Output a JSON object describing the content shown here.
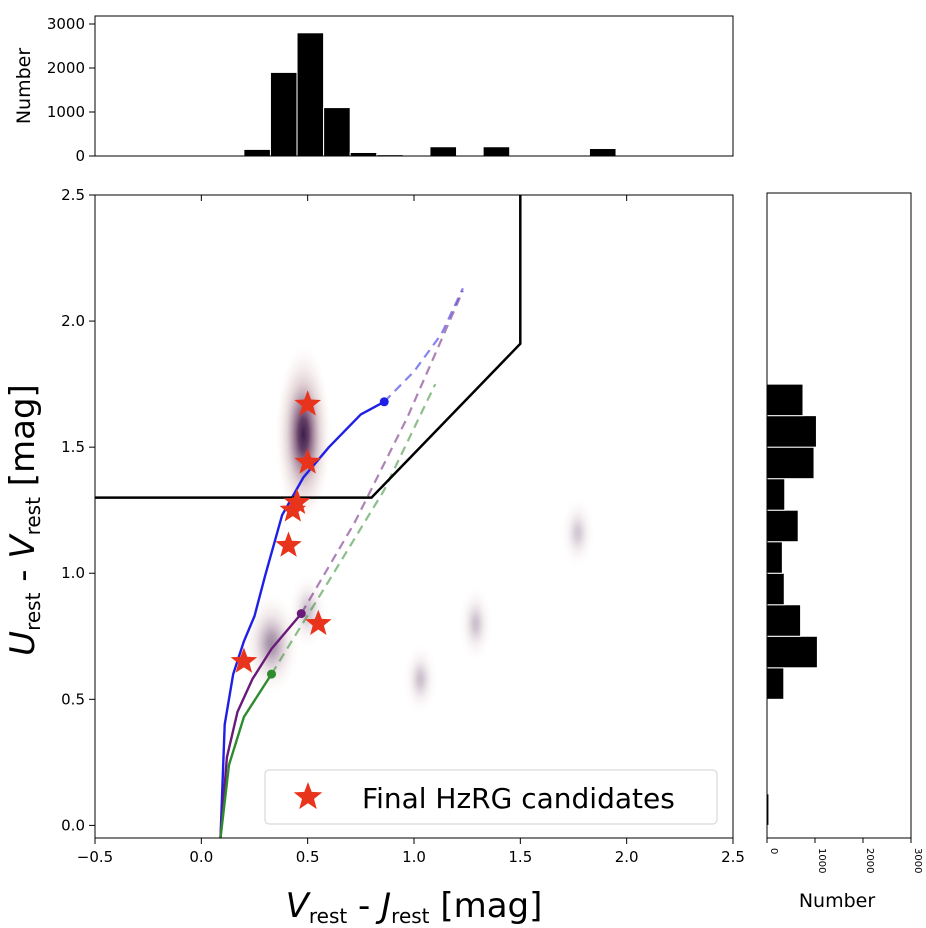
{
  "chart_data": [
    {
      "type": "scatter",
      "panel": "main",
      "xlabel_parts": {
        "V": "V",
        "rest1": "rest",
        "dash": " - ",
        "J": "J",
        "rest2": "rest",
        "unit": " [mag]"
      },
      "ylabel_parts": {
        "U": "U",
        "rest1": "rest",
        "dash": " - ",
        "V": "V",
        "rest2": "rest",
        "unit": " [mag]"
      },
      "xlim": [
        -0.5,
        2.5
      ],
      "ylim": [
        -0.05,
        2.5
      ],
      "xticks": [
        -0.5,
        0.0,
        0.5,
        1.0,
        1.5,
        2.0,
        2.5
      ],
      "xtick_labels": [
        "−0.5",
        "0.0",
        "0.5",
        "1.0",
        "1.5",
        "2.0",
        "2.5"
      ],
      "yticks": [
        0.0,
        0.5,
        1.0,
        1.5,
        2.0,
        2.5
      ],
      "ytick_labels": [
        "0.0",
        "0.5",
        "1.0",
        "1.5",
        "2.0",
        "2.5"
      ],
      "selection_boundary": {
        "points": [
          [
            -0.5,
            1.3
          ],
          [
            0.8,
            1.3
          ],
          [
            1.5,
            1.91
          ],
          [
            1.5,
            2.5
          ]
        ],
        "color": "#000000"
      },
      "tracks": [
        {
          "name": "blue-track",
          "color": "#1f1fe6",
          "solid": [
            [
              0.09,
              -0.05
            ],
            [
              0.11,
              0.4
            ],
            [
              0.15,
              0.6
            ],
            [
              0.2,
              0.73
            ],
            [
              0.25,
              0.83
            ],
            [
              0.3,
              0.99
            ],
            [
              0.38,
              1.23
            ],
            [
              0.48,
              1.38
            ],
            [
              0.6,
              1.5
            ],
            [
              0.75,
              1.63
            ],
            [
              0.86,
              1.68
            ]
          ],
          "dashed": [
            [
              0.86,
              1.68
            ],
            [
              1.0,
              1.8
            ],
            [
              1.13,
              1.95
            ],
            [
              1.23,
              2.13
            ]
          ],
          "endpoint": [
            0.86,
            1.68
          ]
        },
        {
          "name": "purple-track",
          "color": "#6a1b7a",
          "solid": [
            [
              0.09,
              -0.05
            ],
            [
              0.12,
              0.27
            ],
            [
              0.17,
              0.45
            ],
            [
              0.24,
              0.58
            ],
            [
              0.33,
              0.7
            ],
            [
              0.47,
              0.84
            ]
          ],
          "dashed": [
            [
              0.47,
              0.84
            ],
            [
              0.72,
              1.2
            ],
            [
              0.97,
              1.62
            ],
            [
              1.23,
              2.12
            ]
          ],
          "endpoint": [
            0.47,
            0.84
          ]
        },
        {
          "name": "green-track",
          "color": "#2e8b2e",
          "solid": [
            [
              0.09,
              -0.05
            ],
            [
              0.13,
              0.24
            ],
            [
              0.2,
              0.43
            ],
            [
              0.33,
              0.6
            ]
          ],
          "dashed": [
            [
              0.33,
              0.6
            ],
            [
              0.6,
              0.97
            ],
            [
              0.86,
              1.33
            ],
            [
              1.1,
              1.75
            ]
          ],
          "endpoint": [
            0.33,
            0.6
          ]
        }
      ],
      "density_blobs": [
        {
          "x": 0.48,
          "y": 1.55,
          "sx": 0.13,
          "sy": 0.35,
          "peak": 1.0
        },
        {
          "x": 0.33,
          "y": 0.72,
          "sx": 0.13,
          "sy": 0.2,
          "peak": 0.5
        },
        {
          "x": 0.5,
          "y": 0.85,
          "sx": 0.09,
          "sy": 0.15,
          "peak": 0.3
        },
        {
          "x": 1.03,
          "y": 0.58,
          "sx": 0.08,
          "sy": 0.14,
          "peak": 0.28
        },
        {
          "x": 1.29,
          "y": 0.8,
          "sx": 0.08,
          "sy": 0.15,
          "peak": 0.28
        },
        {
          "x": 1.77,
          "y": 1.16,
          "sx": 0.08,
          "sy": 0.14,
          "peak": 0.25
        }
      ],
      "candidates": {
        "label": "Final HzRG candidates",
        "color": "#e8341c",
        "points": [
          [
            0.5,
            1.67
          ],
          [
            0.5,
            1.44
          ],
          [
            0.45,
            1.28
          ],
          [
            0.43,
            1.25
          ],
          [
            0.41,
            1.11
          ],
          [
            0.55,
            0.8
          ],
          [
            0.2,
            0.65
          ]
        ]
      },
      "legend_position": "lower-right"
    },
    {
      "type": "bar",
      "panel": "top-histogram",
      "ylabel": "Number",
      "xlim": [
        -0.5,
        2.5
      ],
      "ylim": [
        0,
        3000
      ],
      "yticks": [
        0,
        1000,
        2000,
        3000
      ],
      "ytick_labels": [
        "0",
        "1000",
        "2000",
        "3000"
      ],
      "bin_width": 0.125,
      "bin_starts": [
        0.2,
        0.325,
        0.45,
        0.575,
        0.7,
        0.825,
        0.95,
        1.075,
        1.2,
        1.325,
        1.45,
        1.575,
        1.7,
        1.825
      ],
      "values": [
        150,
        1900,
        2800,
        1100,
        80,
        30,
        10,
        210,
        5,
        210,
        5,
        0,
        10,
        170
      ]
    },
    {
      "type": "bar",
      "panel": "right-histogram",
      "orientation": "horizontal",
      "xlabel": "Number",
      "xlim": [
        0,
        3000
      ],
      "ylim": [
        -0.05,
        2.5
      ],
      "xticks": [
        0,
        1000,
        2000,
        3000
      ],
      "xtick_labels": [
        "0",
        "1000",
        "2000",
        "3000"
      ],
      "bin_height": 0.125,
      "bin_starts": [
        0.0,
        0.125,
        0.25,
        0.375,
        0.5,
        0.625,
        0.75,
        0.875,
        1.0,
        1.125,
        1.25,
        1.375,
        1.5,
        1.625
      ],
      "values": [
        40,
        0,
        0,
        0,
        350,
        1050,
        700,
        360,
        320,
        650,
        370,
        980,
        1030,
        750
      ]
    }
  ]
}
